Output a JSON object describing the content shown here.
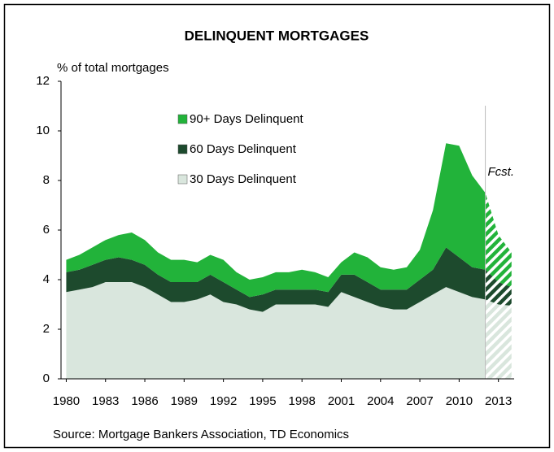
{
  "chart_data": {
    "type": "stacked_area",
    "title": "DELINQUENT MORTGAGES",
    "y_label": "% of total mortgages",
    "annotation": "Fcst.",
    "source": "Source: Mortgage Bankers Association, TD Economics",
    "forecast_from": 2012,
    "x": [
      1980,
      1981,
      1982,
      1983,
      1984,
      1985,
      1986,
      1987,
      1988,
      1989,
      1990,
      1991,
      1992,
      1993,
      1994,
      1995,
      1996,
      1997,
      1998,
      1999,
      2000,
      2001,
      2002,
      2003,
      2004,
      2005,
      2006,
      2007,
      2008,
      2009,
      2010,
      2011,
      2012,
      2013,
      2014
    ],
    "series": [
      {
        "name": "30 Days Delinquent",
        "color": "#d9e6dd",
        "values": [
          3.5,
          3.6,
          3.7,
          3.9,
          3.9,
          3.9,
          3.7,
          3.4,
          3.1,
          3.1,
          3.2,
          3.4,
          3.1,
          3.0,
          2.8,
          2.7,
          3.0,
          3.0,
          3.0,
          3.0,
          2.9,
          3.5,
          3.3,
          3.1,
          2.9,
          2.8,
          2.8,
          3.1,
          3.4,
          3.7,
          3.5,
          3.3,
          3.2,
          3.0,
          2.95
        ]
      },
      {
        "name": "60 Days Delinquent",
        "color": "#1d4a2d",
        "values": [
          0.8,
          0.8,
          0.9,
          0.9,
          1.0,
          0.9,
          0.9,
          0.8,
          0.8,
          0.8,
          0.7,
          0.8,
          0.8,
          0.6,
          0.5,
          0.7,
          0.6,
          0.6,
          0.6,
          0.6,
          0.6,
          0.7,
          0.9,
          0.8,
          0.7,
          0.8,
          0.8,
          0.9,
          1.0,
          1.6,
          1.4,
          1.2,
          1.2,
          0.9,
          0.75
        ]
      },
      {
        "name": "90+ Days Delinquent",
        "color": "#22b33a",
        "values": [
          0.5,
          0.6,
          0.7,
          0.8,
          0.9,
          1.1,
          1.0,
          0.9,
          0.9,
          0.9,
          0.8,
          0.8,
          0.9,
          0.7,
          0.7,
          0.7,
          0.7,
          0.7,
          0.8,
          0.7,
          0.6,
          0.5,
          0.9,
          1.0,
          0.9,
          0.8,
          0.9,
          1.2,
          2.4,
          4.2,
          4.5,
          3.7,
          3.1,
          1.9,
          1.4
        ]
      }
    ],
    "xlim": [
      1979.6,
      2014.2
    ],
    "xticks": [
      1980,
      1983,
      1986,
      1989,
      1992,
      1995,
      1998,
      2001,
      2004,
      2007,
      2010,
      2013
    ],
    "ylim": [
      0,
      12
    ],
    "yticks": [
      0,
      2,
      4,
      6,
      8,
      10,
      12
    ]
  }
}
